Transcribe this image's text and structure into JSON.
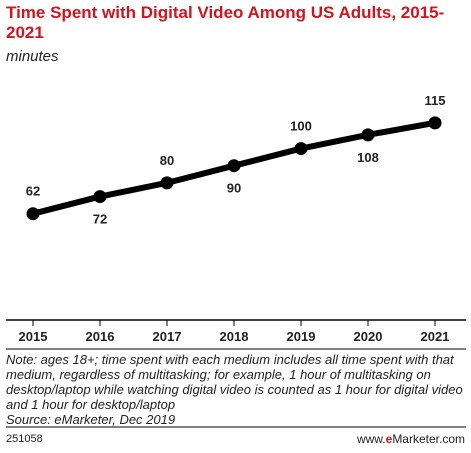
{
  "header": {
    "title": "Time Spent with Digital Video Among US Adults, 2015-2021",
    "subtitle": "minutes"
  },
  "chart_data": {
    "type": "line",
    "title": "Time Spent with Digital Video Among US Adults, 2015-2021",
    "subtitle": "minutes",
    "categories": [
      "2015",
      "2016",
      "2017",
      "2018",
      "2019",
      "2020",
      "2021"
    ],
    "series": [
      {
        "values": [
          62,
          72,
          80,
          90,
          100,
          108,
          115
        ]
      }
    ],
    "label_positions": [
      "above",
      "below",
      "above",
      "below",
      "above",
      "below",
      "above"
    ],
    "ylim": [
      0,
      140
    ],
    "grid": false,
    "line_color": "#000000"
  },
  "footer": {
    "note": "Note: ages 18+; time spent with each medium includes all time spent with that medium, regardless of multitasking; for example, 1 hour of multitasking on desktop/laptop while watching digital video is counted as 1 hour for digital video and 1 hour for desktop/laptop",
    "source": "Source: eMarketer, Dec 2019",
    "chart_id": "251058",
    "brand_prefix": "www.",
    "brand_e": "e",
    "brand_suffix": "Marketer.com"
  }
}
